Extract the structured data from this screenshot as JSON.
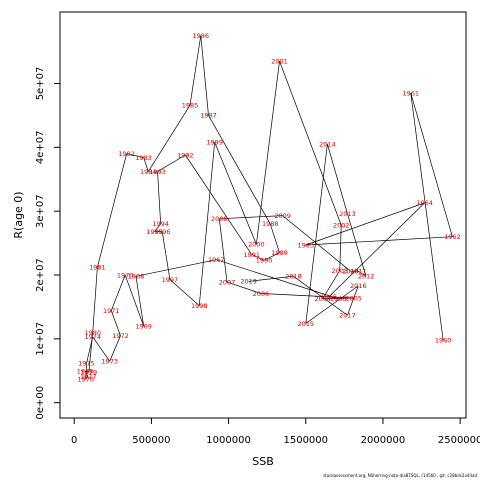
{
  "chart_data": {
    "type": "line",
    "xlabel": "SSB",
    "ylabel": "R(age 0)",
    "xlim": [
      -92000,
      2538000
    ],
    "ylim": [
      -2400000,
      61200000
    ],
    "x_ticks": [
      {
        "value": 0,
        "label": "0"
      },
      {
        "value": 500000,
        "label": "500000"
      },
      {
        "value": 1000000,
        "label": "1000000"
      },
      {
        "value": 1500000,
        "label": "1500000"
      },
      {
        "value": 2000000,
        "label": "2000000"
      },
      {
        "value": 2500000,
        "label": "2500000"
      }
    ],
    "y_ticks": [
      {
        "value": 0,
        "label": "0e+00"
      },
      {
        "value": 10000000,
        "label": "1e+07"
      },
      {
        "value": 20000000,
        "label": "2e+07"
      },
      {
        "value": 30000000,
        "label": "3e+07"
      },
      {
        "value": 40000000,
        "label": "4e+07"
      },
      {
        "value": 50000000,
        "label": "5e+07"
      }
    ],
    "line_color": "#000000",
    "label_color": "#dd0000",
    "series": [
      {
        "points": [
          {
            "label": "1960",
            "x": 2390000,
            "y": 9800000
          },
          {
            "label": "1961",
            "x": 2180000,
            "y": 48500000
          },
          {
            "label": "1962",
            "x": 2450000,
            "y": 26000000
          },
          {
            "label": "1963",
            "x": 1500000,
            "y": 24700000
          },
          {
            "label": "1964",
            "x": 2270000,
            "y": 31300000
          },
          {
            "label": "1965",
            "x": 1650000,
            "y": 16600000
          },
          {
            "label": "1966",
            "x": 1710000,
            "y": 16300000
          },
          {
            "label": "1967",
            "x": 920000,
            "y": 22400000
          },
          {
            "label": "1968",
            "x": 400000,
            "y": 19800000
          },
          {
            "label": "1969",
            "x": 450000,
            "y": 12000000
          },
          {
            "label": "1970",
            "x": 330000,
            "y": 20000000
          },
          {
            "label": "1971",
            "x": 240000,
            "y": 14400000
          },
          {
            "label": "1972",
            "x": 300000,
            "y": 10500000
          },
          {
            "label": "1973",
            "x": 230000,
            "y": 6500000
          },
          {
            "label": "1974",
            "x": 120000,
            "y": 10300000
          },
          {
            "label": "1975",
            "x": 80000,
            "y": 6200000
          },
          {
            "label": "1976",
            "x": 75000,
            "y": 3700000
          },
          {
            "label": "1977",
            "x": 90000,
            "y": 4100000
          },
          {
            "label": "1978",
            "x": 70000,
            "y": 4900000
          },
          {
            "label": "1979",
            "x": 95000,
            "y": 4800000
          },
          {
            "label": "1980",
            "x": 120000,
            "y": 11000000
          },
          {
            "label": "1981",
            "x": 150000,
            "y": 21200000
          },
          {
            "label": "1982",
            "x": 340000,
            "y": 39000000
          },
          {
            "label": "1983",
            "x": 450000,
            "y": 38400000
          },
          {
            "label": "1984",
            "x": 480000,
            "y": 36200000
          },
          {
            "label": "1985",
            "x": 750000,
            "y": 46600000
          },
          {
            "label": "1986",
            "x": 820000,
            "y": 57500000
          },
          {
            "label": "1987",
            "x": 870000,
            "y": 45000000
          },
          {
            "label": "1988",
            "x": 1270000,
            "y": 28000000
          },
          {
            "label": "1989",
            "x": 1330000,
            "y": 23500000
          },
          {
            "label": "1990",
            "x": 1230000,
            "y": 22300000
          },
          {
            "label": "1991",
            "x": 1150000,
            "y": 23200000
          },
          {
            "label": "1992",
            "x": 720000,
            "y": 38800000
          },
          {
            "label": "1993",
            "x": 540000,
            "y": 36200000
          },
          {
            "label": "1994",
            "x": 560000,
            "y": 28000000
          },
          {
            "label": "1995",
            "x": 520000,
            "y": 26800000
          },
          {
            "label": "1996",
            "x": 570000,
            "y": 26800000
          },
          {
            "label": "1997",
            "x": 620000,
            "y": 19300000
          },
          {
            "label": "1998",
            "x": 810000,
            "y": 15200000
          },
          {
            "label": "1999",
            "x": 910000,
            "y": 40800000
          },
          {
            "label": "2000",
            "x": 1180000,
            "y": 24800000
          },
          {
            "label": "2001",
            "x": 1330000,
            "y": 53500000
          },
          {
            "label": "2002",
            "x": 1730000,
            "y": 27800000
          },
          {
            "label": "2003",
            "x": 1720000,
            "y": 20700000
          },
          {
            "label": "2004",
            "x": 1610000,
            "y": 16300000
          },
          {
            "label": "2005",
            "x": 1810000,
            "y": 16400000
          },
          {
            "label": "2006",
            "x": 1210000,
            "y": 17100000
          },
          {
            "label": "2007",
            "x": 990000,
            "y": 18900000
          },
          {
            "label": "2008",
            "x": 940000,
            "y": 28800000
          },
          {
            "label": "2009",
            "x": 1350000,
            "y": 29300000
          },
          {
            "label": "2010",
            "x": 1790000,
            "y": 20600000
          },
          {
            "label": "2011",
            "x": 1840000,
            "y": 20600000
          },
          {
            "label": "2012",
            "x": 1890000,
            "y": 19800000
          },
          {
            "label": "2013",
            "x": 1770000,
            "y": 29600000
          },
          {
            "label": "2014",
            "x": 1640000,
            "y": 40500000
          },
          {
            "label": "2015",
            "x": 1500000,
            "y": 12400000
          },
          {
            "label": "2016",
            "x": 1840000,
            "y": 18300000
          },
          {
            "label": "2017",
            "x": 1770000,
            "y": 13700000
          },
          {
            "label": "2018",
            "x": 1420000,
            "y": 19800000
          },
          {
            "label": "2019",
            "x": 1130000,
            "y": 19000000
          }
        ]
      }
    ],
    "footer": "stockassessment.org, NSherring-noto-diaBTSQL, r14560 , git: c28bdc2a44ad"
  }
}
